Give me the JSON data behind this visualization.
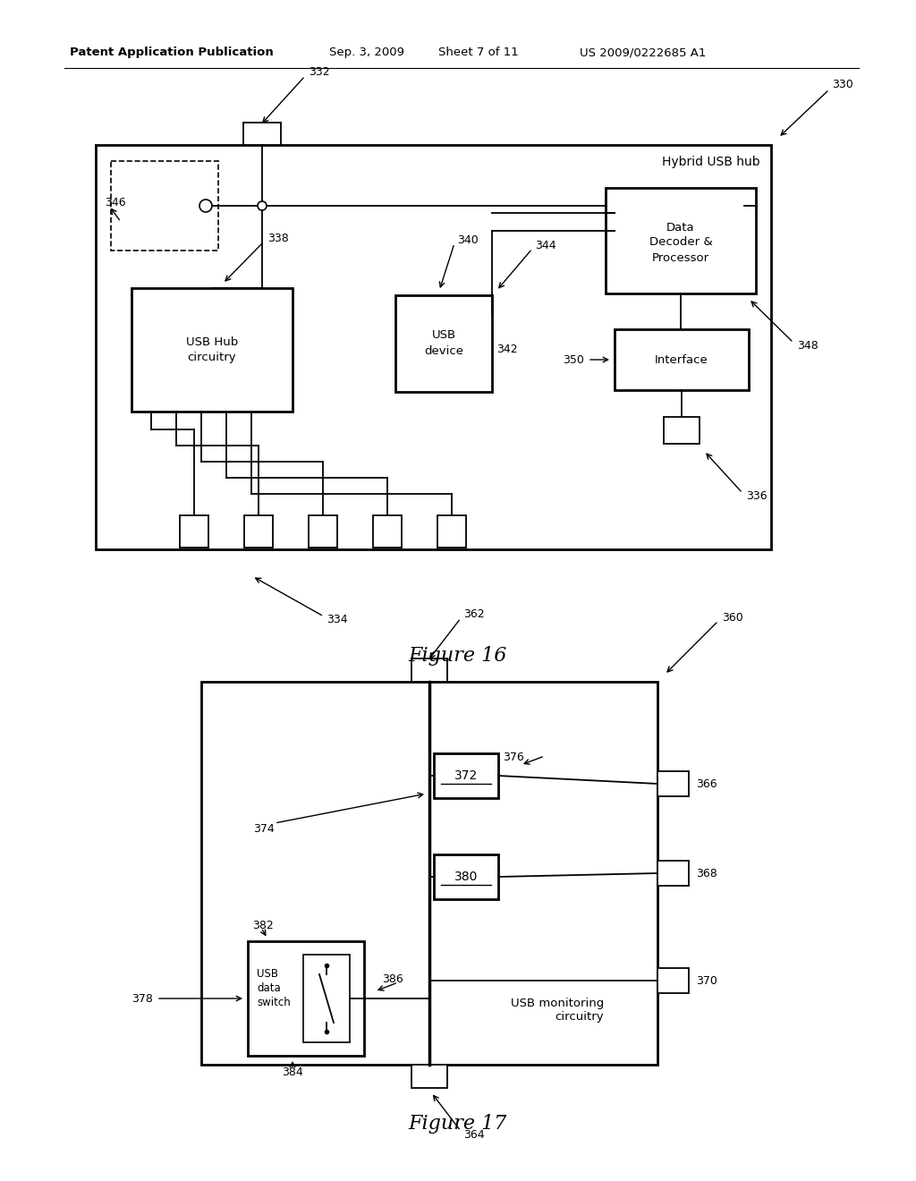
{
  "bg": "#ffffff",
  "lc": "#000000",
  "header_left": "Patent Application Publication",
  "header_date": "Sep. 3, 2009",
  "header_sheet": "Sheet 7 of 11",
  "header_patent": "US 2009/0222685 A1",
  "fig16_caption": "Figure 16",
  "fig17_caption": "Figure 17",
  "fig16_hub_label": "Hybrid USB hub",
  "fig16_usb_hub": "USB Hub\ncircuitry",
  "fig16_usb_device": "USB\ndevice",
  "fig16_decoder": "Data\nDecoder &\nProcessor",
  "fig16_interface": "Interface",
  "fig17_monitoring": "USB monitoring\ncircuitry",
  "fig17_switch": "USB\ndata\nswitch"
}
